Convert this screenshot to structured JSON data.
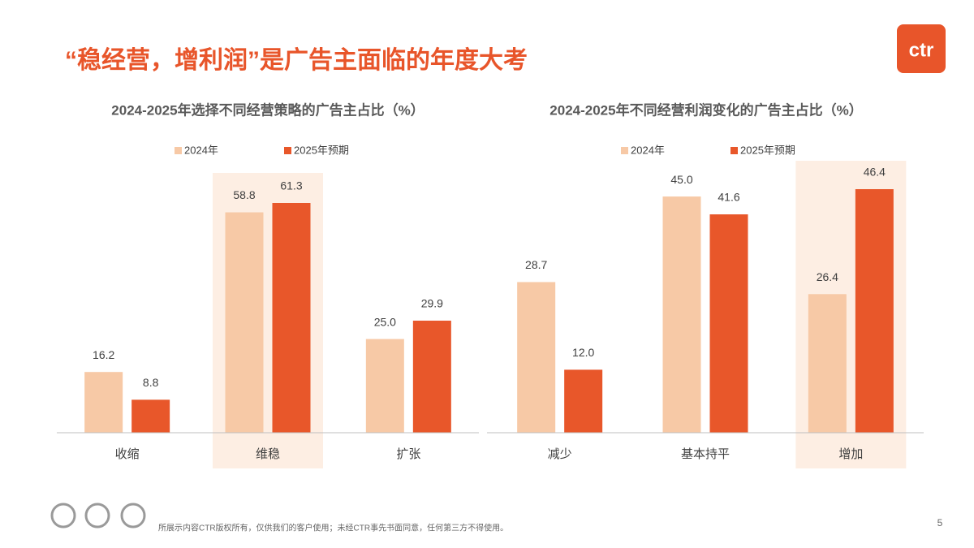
{
  "header": {
    "title": "“稳经营，增利润”是广告主面临的年度大考",
    "logo": "ctr"
  },
  "chart_data": [
    {
      "type": "bar",
      "title": "2024-2025年选择不同经营策略的广告主占比（%）",
      "categories": [
        "收缩",
        "维稳",
        "扩张"
      ],
      "highlight_index": 1,
      "series": [
        {
          "name": "2024年",
          "color": "#f7c9a6",
          "values": [
            16.2,
            58.8,
            25.0
          ],
          "value_labels": [
            "16.2",
            "58.8",
            "25.0"
          ]
        },
        {
          "name": "2025年预期",
          "color": "#e8572a",
          "values": [
            8.8,
            61.3,
            29.9
          ],
          "value_labels": [
            "8.8",
            "61.3",
            "29.9"
          ]
        }
      ]
    },
    {
      "type": "bar",
      "title": "2024-2025年不同经营利润变化的广告主占比（%）",
      "categories": [
        "减少",
        "基本持平",
        "增加"
      ],
      "highlight_index": 2,
      "series": [
        {
          "name": "2024年",
          "color": "#f7c9a6",
          "values": [
            28.7,
            45.0,
            26.4
          ],
          "value_labels": [
            "28.7",
            "45.0",
            "26.4"
          ]
        },
        {
          "name": "2025年预期",
          "color": "#e8572a",
          "values": [
            12.0,
            41.6,
            46.4
          ],
          "value_labels": [
            "12.0",
            "41.6",
            "46.4"
          ]
        }
      ]
    }
  ],
  "footer": {
    "note": "所展示内容CTR版权所有，仅供我们的客户使用；未经CTR事先书面同意，任何第三方不得使用。",
    "page": "5"
  }
}
